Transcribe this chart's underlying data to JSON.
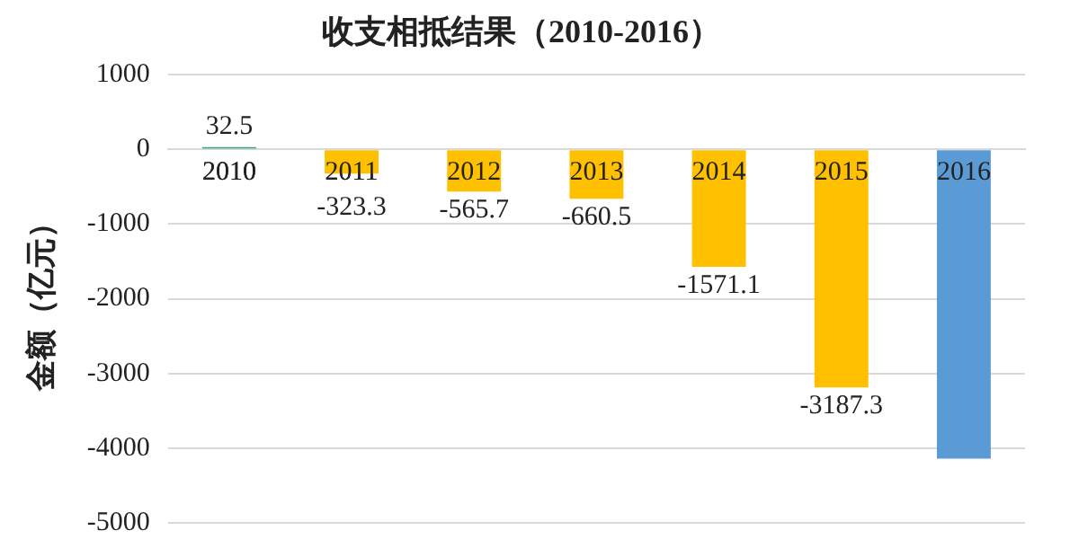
{
  "chart_data": {
    "type": "bar",
    "title": "收支相抵结果（2010-2016）",
    "ylabel": "金额（亿元）",
    "categories": [
      "2010",
      "2011",
      "2012",
      "2013",
      "2014",
      "2015",
      "2016"
    ],
    "values": [
      32.5,
      -323.3,
      -565.7,
      -660.5,
      -1571.1,
      -3187.3,
      -4140
    ],
    "colors": [
      "#3aa57a",
      "#ffc000",
      "#ffc000",
      "#ffc000",
      "#ffc000",
      "#ffc000",
      "#5b9bd5"
    ],
    "value_labels": [
      "32.5",
      "-323.3",
      "-565.7",
      "-660.5",
      "-1571.1",
      "-3187.3",
      null
    ],
    "ylim": [
      -5000,
      1000
    ],
    "yticks": [
      1000,
      0,
      -1000,
      -2000,
      -3000,
      -4000,
      -5000
    ],
    "grid": "y",
    "legend": false
  }
}
